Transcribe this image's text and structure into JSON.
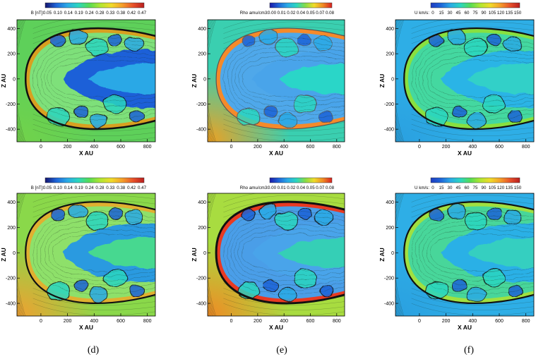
{
  "figure": {
    "panel_letters": [
      "(d)",
      "(e)",
      "(f)"
    ]
  },
  "chart_data": [
    {
      "type": "heatmap",
      "variable": "B",
      "colorbar": {
        "label": "B [nT]:",
        "ticks": [
          "0.05",
          "0.10",
          "0.14",
          "0.19",
          "0.24",
          "0.28",
          "0.33",
          "0.38",
          "0.42",
          "0.47"
        ]
      },
      "xlabel": "X AU",
      "ylabel": "Z AU",
      "xticks": [
        "0",
        "200",
        "400",
        "600",
        "800"
      ],
      "yticks": [
        "400",
        "200",
        "0",
        "-200",
        "-400"
      ],
      "xlim": [
        -180,
        860
      ],
      "ylim": [
        -500,
        470
      ],
      "colors": [
        "#14146e",
        "#1e64d8",
        "#2ba9e6",
        "#2bd6c0",
        "#55dc55",
        "#b0e632",
        "#f0dc2a",
        "#f5a02a",
        "#e8522a",
        "#b81e1e"
      ],
      "background": "#5ed05a",
      "interior": "#7ee07a",
      "shock": "#d8a020",
      "tail": "#1e60d8",
      "tail2": "#2aa8e6",
      "edge": "#111111",
      "edgew": 2.5,
      "corner": "#72d24a"
    },
    {
      "type": "heatmap",
      "variable": "Rho",
      "colorbar": {
        "label": "Rho amu/cm3:",
        "ticks": [
          "0.00",
          "0.01",
          "0.02",
          "0.04",
          "0.05",
          "0.07",
          "0.08"
        ]
      },
      "xlabel": "X AU",
      "ylabel": "Z AU",
      "xticks": [
        "0",
        "200",
        "400",
        "600",
        "800"
      ],
      "yticks": [
        "400",
        "200",
        "0",
        "-200",
        "-400"
      ],
      "xlim": [
        -180,
        860
      ],
      "ylim": [
        -500,
        470
      ],
      "colors": [
        "#1a1aa8",
        "#1e64d8",
        "#2aaae6",
        "#2bd6c0",
        "#86dc48",
        "#f0dc2a",
        "#f08a24",
        "#d82020"
      ],
      "background": "#3acfb0",
      "interior": "#4fa8ea",
      "shock": "#f58a2a",
      "tail": "#4aa4ea",
      "tail2": "#2cd6c8",
      "edge": "#555555",
      "edgew": 1.2,
      "corner": "#f0a020"
    },
    {
      "type": "heatmap",
      "variable": "U",
      "colorbar": {
        "label": "U km/s:",
        "ticks": [
          "0",
          "15",
          "30",
          "45",
          "60",
          "75",
          "90",
          "105",
          "120",
          "135",
          "150"
        ]
      },
      "xlabel": "X AU",
      "ylabel": "Z AU",
      "xticks": [
        "0",
        "200",
        "400",
        "600",
        "800"
      ],
      "yticks": [
        "400",
        "200",
        "0",
        "-200",
        "-400"
      ],
      "xlim": [
        -180,
        860
      ],
      "ylim": [
        -500,
        470
      ],
      "colors": [
        "#1e3cc0",
        "#1e64d8",
        "#2aaae6",
        "#2bd6c0",
        "#55dc55",
        "#b0e632",
        "#f0dc2a",
        "#f5a02a",
        "#e8522a",
        "#b81e1e"
      ],
      "background": "#2eaee6",
      "interior": "#44d8a0",
      "shock": "#88e040",
      "tail": "#2cb4e6",
      "tail2": "#30d0c8",
      "edge": "#111111",
      "edgew": 2.2,
      "corner": "#2aa0e0"
    },
    {
      "type": "heatmap",
      "variable": "B",
      "colorbar": {
        "label": "B [nT]:",
        "ticks": [
          "0.05",
          "0.10",
          "0.14",
          "0.19",
          "0.24",
          "0.28",
          "0.33",
          "0.38",
          "0.42",
          "0.47"
        ]
      },
      "xlabel": "X AU",
      "ylabel": "Z AU",
      "xticks": [
        "0",
        "200",
        "400",
        "600",
        "800"
      ],
      "yticks": [
        "400",
        "200",
        "0",
        "-200",
        "-400"
      ],
      "xlim": [
        -180,
        860
      ],
      "ylim": [
        -500,
        470
      ],
      "colors": [
        "#14146e",
        "#1e64d8",
        "#2ba9e6",
        "#2bd6c0",
        "#55dc55",
        "#b0e632",
        "#f0dc2a",
        "#f5a02a",
        "#e8522a",
        "#b81e1e"
      ],
      "background": "#8ad84a",
      "interior": "#8ee06a",
      "shock": "#e0b030",
      "tail": "#2a9ae0",
      "tail2": "#46d890",
      "edge": "#111111",
      "edgew": 2.2,
      "corner": "#f0a030"
    },
    {
      "type": "heatmap",
      "variable": "Rho",
      "colorbar": {
        "label": "Rho amu/cm3:",
        "ticks": [
          "0.00",
          "0.01",
          "0.02",
          "0.04",
          "0.05",
          "0.07",
          "0.08"
        ]
      },
      "xlabel": "X AU",
      "ylabel": "Z AU",
      "xticks": [
        "0",
        "200",
        "400",
        "600",
        "800"
      ],
      "yticks": [
        "400",
        "200",
        "0",
        "-200",
        "-400"
      ],
      "xlim": [
        -180,
        860
      ],
      "ylim": [
        -500,
        470
      ],
      "colors": [
        "#1a1aa8",
        "#1e64d8",
        "#2aaae6",
        "#2bd6c0",
        "#86dc48",
        "#f0dc2a",
        "#f08a24",
        "#d82020"
      ],
      "background": "#a8dc40",
      "interior": "#4a9ee8",
      "shock": "#e83a22",
      "tail": "#4aa4ea",
      "tail2": "#36cfb6",
      "edge": "#111111",
      "edgew": 3,
      "corner": "#f08a24"
    },
    {
      "type": "heatmap",
      "variable": "U",
      "colorbar": {
        "label": "U km/s:",
        "ticks": [
          "0",
          "15",
          "30",
          "45",
          "60",
          "75",
          "90",
          "105",
          "120",
          "135",
          "150"
        ]
      },
      "xlabel": "X AU",
      "ylabel": "Z AU",
      "xticks": [
        "0",
        "200",
        "400",
        "600",
        "800"
      ],
      "yticks": [
        "400",
        "200",
        "0",
        "-200",
        "-400"
      ],
      "xlim": [
        -180,
        860
      ],
      "ylim": [
        -500,
        470
      ],
      "colors": [
        "#1e3cc0",
        "#1e64d8",
        "#2aaae6",
        "#2bd6c0",
        "#55dc55",
        "#b0e632",
        "#f0dc2a",
        "#f5a02a",
        "#e8522a",
        "#b81e1e"
      ],
      "background": "#2eaee6",
      "interior": "#48d69a",
      "shock": "#a0e040",
      "tail": "#2cb0e6",
      "tail2": "#36cfc0",
      "edge": "#111111",
      "edgew": 2.2,
      "corner": "#2aa0e0"
    }
  ]
}
